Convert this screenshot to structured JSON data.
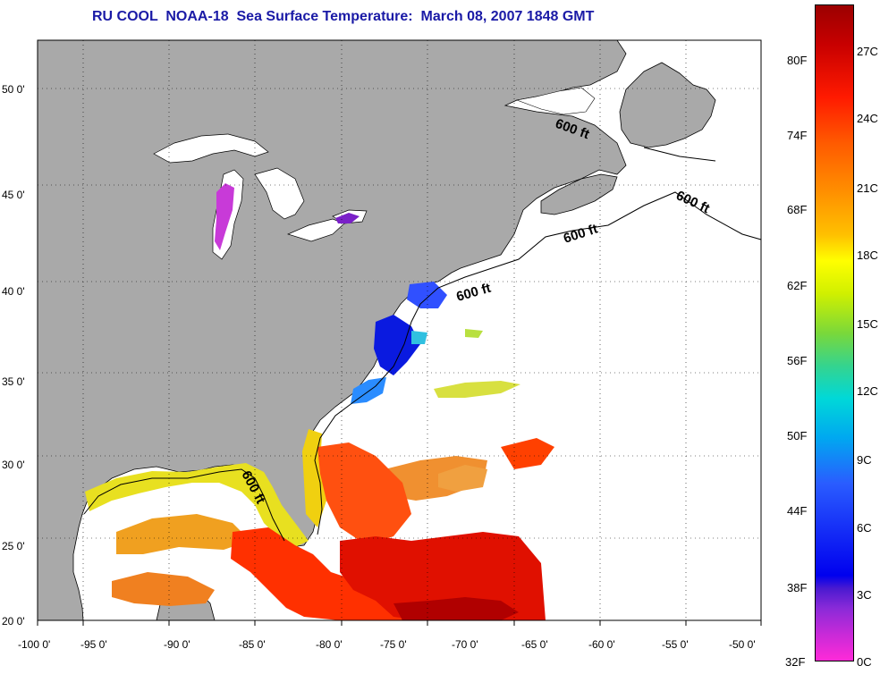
{
  "title": "RU COOL  NOAA-18  Sea Surface Temperature:  March 08, 2007 1848 GMT",
  "map": {
    "x_ticks": [
      "-100 0'",
      "-95 0'",
      "-90 0'",
      "-85 0'",
      "-80 0'",
      "-75 0'",
      "-70 0'",
      "-65 0'",
      "-60 0'",
      "-55 0'",
      "-50 0'"
    ],
    "y_ticks": [
      "50 0'",
      "45 0'",
      "40 0'",
      "35 0'",
      "30 0'",
      "25 0'",
      "20 0'"
    ],
    "contour_labels": [
      "600 ft",
      "600 ft",
      "600 ft",
      "600 ft",
      "600 ft"
    ],
    "colors": {
      "land": "#a9a9a9",
      "ocean_no_data": "#ffffff",
      "grid": "#000000"
    }
  },
  "colorbar": {
    "f_labels": [
      "80F",
      "74F",
      "68F",
      "62F",
      "56F",
      "50F",
      "44F",
      "38F",
      "32F"
    ],
    "c_labels": [
      "27C",
      "24C",
      "21C",
      "18C",
      "15C",
      "12C",
      "9C",
      "6C",
      "3C",
      "0C"
    ]
  }
}
